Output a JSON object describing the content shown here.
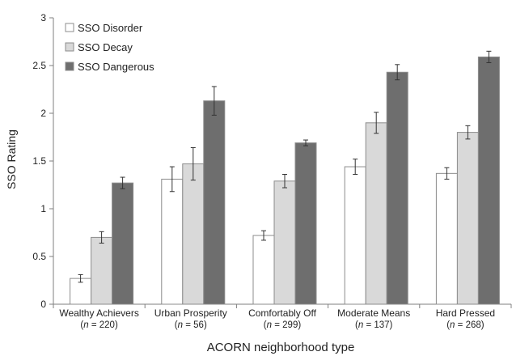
{
  "chart_data": {
    "type": "bar",
    "title": "",
    "xlabel": "ACORN neighborhood type",
    "ylabel": "SSO Rating",
    "ylim": [
      0,
      3
    ],
    "yticks": [
      0,
      0.5,
      1,
      1.5,
      2,
      2.5,
      3
    ],
    "ytick_labels": [
      "0",
      "0.5",
      "1",
      "1.5",
      "2",
      "2.5",
      "3"
    ],
    "grid": false,
    "legend_position": "top-left",
    "categories": [
      "Wealthy Achievers",
      "Urban Prosperity",
      "Comfortably Off",
      "Moderate Means",
      "Hard Pressed"
    ],
    "category_n": [
      "220",
      "56",
      "299",
      "137",
      "268"
    ],
    "series": [
      {
        "name": "SSO Disorder",
        "color": "#ffffff",
        "values": [
          0.27,
          1.31,
          0.72,
          1.44,
          1.37
        ],
        "errors": [
          0.04,
          0.13,
          0.05,
          0.08,
          0.06
        ]
      },
      {
        "name": "SSO Decay",
        "color": "#d9d9d9",
        "values": [
          0.7,
          1.47,
          1.29,
          1.9,
          1.8
        ],
        "errors": [
          0.06,
          0.17,
          0.07,
          0.11,
          0.07
        ]
      },
      {
        "name": "SSO Dangerous",
        "color": "#6e6e6e",
        "values": [
          1.27,
          2.13,
          1.69,
          2.43,
          2.59
        ],
        "errors": [
          0.06,
          0.15,
          0.03,
          0.08,
          0.06
        ]
      }
    ]
  }
}
